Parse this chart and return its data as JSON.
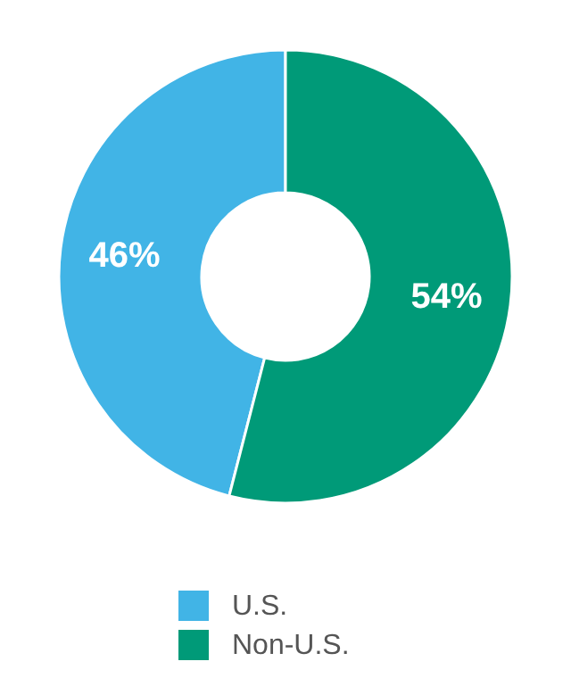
{
  "chart_data": {
    "type": "donut",
    "categories": [
      "U.S.",
      "Non-U.S."
    ],
    "values": [
      46,
      54
    ],
    "colors": [
      "#41b4e6",
      "#009a78"
    ],
    "value_labels": [
      "46%",
      "54%"
    ],
    "legend": "bottom"
  }
}
